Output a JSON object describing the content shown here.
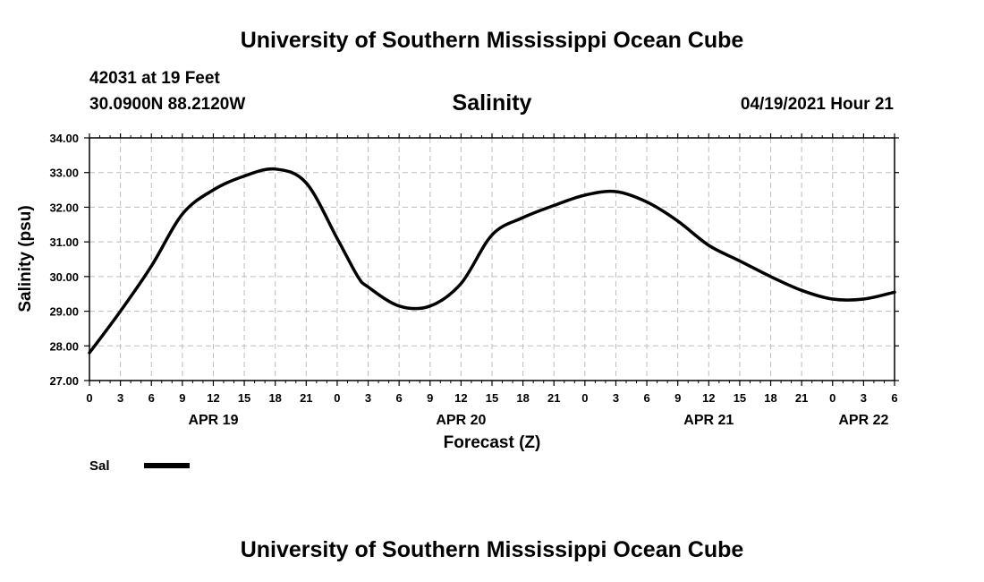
{
  "header": {
    "title_top": "University of Southern Mississippi Ocean Cube",
    "station_id": "42031 at 19 Feet",
    "station_position": "30.0900N  88.2120W",
    "date_label": "04/19/2021 Hour 21",
    "title_bottom": "University of Southern Mississippi Ocean Cube"
  },
  "chart_data": {
    "type": "line",
    "title": "Salinity",
    "xlabel": "Forecast (Z)",
    "ylabel": "Salinity (psu)",
    "ylim": [
      27.0,
      34.0
    ],
    "y_ticks": [
      "27.00",
      "28.00",
      "29.00",
      "30.00",
      "31.00",
      "32.00",
      "33.00",
      "34.00"
    ],
    "xlim_hours": [
      0,
      78
    ],
    "x_tick_labels": [
      "0",
      "3",
      "6",
      "9",
      "12",
      "15",
      "18",
      "21",
      "0",
      "3",
      "6",
      "9",
      "12",
      "15",
      "18",
      "21",
      "0",
      "3",
      "6",
      "9",
      "12",
      "15",
      "18",
      "21",
      "0",
      "3",
      "6"
    ],
    "day_labels": [
      {
        "label": "APR 19",
        "hour": 12
      },
      {
        "label": "APR 20",
        "hour": 36
      },
      {
        "label": "APR 21",
        "hour": 60
      },
      {
        "label": "APR 22",
        "hour": 75
      }
    ],
    "grid": true,
    "legend": [
      {
        "name": "Sal",
        "color": "#000000"
      }
    ],
    "series": [
      {
        "name": "Sal",
        "color": "#000000",
        "x": [
          0,
          3,
          6,
          9,
          12,
          15,
          18,
          21,
          24,
          26,
          27,
          30,
          33,
          36,
          39,
          42,
          45,
          48,
          51,
          54,
          57,
          60,
          63,
          66,
          69,
          72,
          75,
          78
        ],
        "values": [
          27.8,
          29.0,
          30.3,
          31.8,
          32.5,
          32.9,
          33.1,
          32.7,
          31.1,
          30.0,
          29.7,
          29.15,
          29.15,
          29.8,
          31.2,
          31.7,
          32.05,
          32.35,
          32.45,
          32.15,
          31.6,
          30.9,
          30.45,
          30.0,
          29.6,
          29.35,
          29.35,
          29.55
        ]
      }
    ]
  }
}
